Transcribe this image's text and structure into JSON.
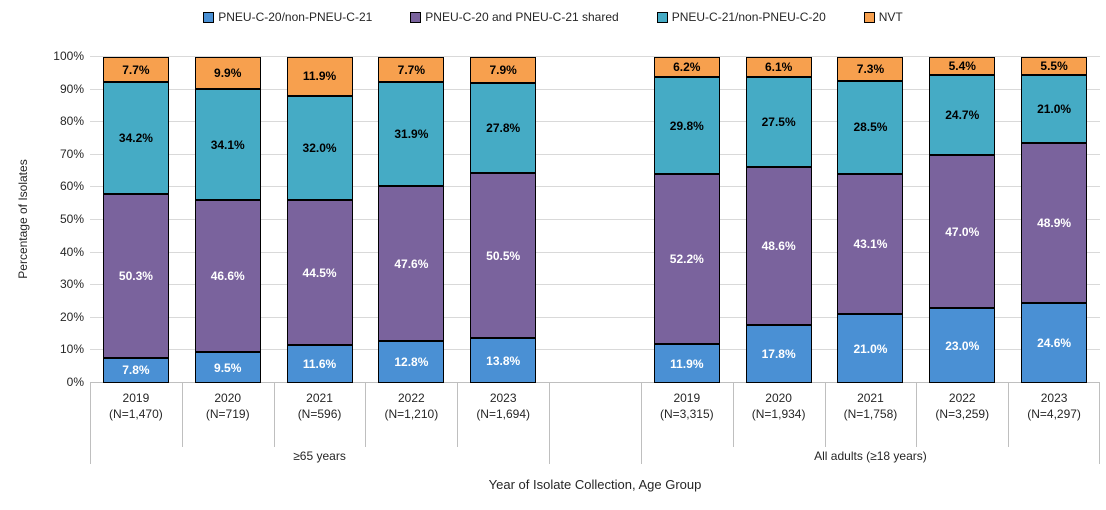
{
  "chart_data": {
    "type": "bar",
    "stacked": true,
    "title": "",
    "xlabel": "Year of Isolate Collection, Age Group",
    "ylabel": "Percentage of Isolates",
    "ylim": [
      0,
      100
    ],
    "ytick_step": 10,
    "ytick_suffix": "%",
    "grid": true,
    "legend_position": "top",
    "series": [
      {
        "name": "PNEU-C-20/non-PNEU-C-21",
        "color": "#4A90D4",
        "label_color": "#ffffff"
      },
      {
        "name": "PNEU-C-20 and PNEU-C-21 shared",
        "color": "#7A639D",
        "label_color": "#ffffff"
      },
      {
        "name": "PNEU-C-21/non-PNEU-C-20",
        "color": "#45ABC5",
        "label_color": "#000000"
      },
      {
        "name": "NVT",
        "color": "#F7A04E",
        "label_color": "#000000"
      }
    ],
    "groups": [
      {
        "label": "≥65 years",
        "bars": [
          {
            "year": "2019",
            "n": "(N=1,470)",
            "values": [
              7.8,
              50.3,
              34.2,
              7.7
            ]
          },
          {
            "year": "2020",
            "n": "(N=719)",
            "values": [
              9.5,
              46.6,
              34.1,
              9.9
            ]
          },
          {
            "year": "2021",
            "n": "(N=596)",
            "values": [
              11.6,
              44.5,
              32.0,
              11.9
            ]
          },
          {
            "year": "2022",
            "n": "(N=1,210)",
            "values": [
              12.8,
              47.6,
              31.9,
              7.7
            ]
          },
          {
            "year": "2023",
            "n": "(N=1,694)",
            "values": [
              13.8,
              50.5,
              27.8,
              7.9
            ]
          }
        ]
      },
      {
        "label": "All adults (≥18 years)",
        "bars": [
          {
            "year": "2019",
            "n": "(N=3,315)",
            "values": [
              11.9,
              52.2,
              29.8,
              6.2
            ]
          },
          {
            "year": "2020",
            "n": "(N=1,934)",
            "values": [
              17.8,
              48.6,
              27.5,
              6.1
            ]
          },
          {
            "year": "2021",
            "n": "(N=1,758)",
            "values": [
              21.0,
              43.1,
              28.5,
              7.3
            ]
          },
          {
            "year": "2022",
            "n": "(N=3,259)",
            "values": [
              23.0,
              47.0,
              24.7,
              5.4
            ]
          },
          {
            "year": "2023",
            "n": "(N=4,297)",
            "values": [
              24.6,
              48.9,
              21.0,
              5.5
            ]
          }
        ]
      }
    ]
  }
}
